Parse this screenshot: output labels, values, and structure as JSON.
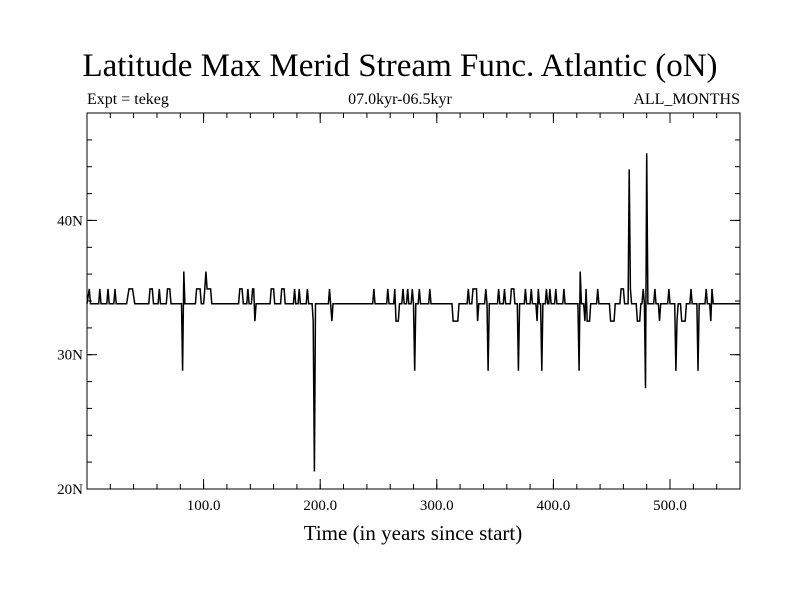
{
  "chart_data": {
    "type": "line",
    "title": "Latitude Max Merid Stream Func. Atlantic (oN)",
    "subtitle_left": "Expt = tekeg",
    "subtitle_center": "07.0kyr-06.5kyr",
    "subtitle_right": "ALL_MONTHS",
    "xlabel": "Time (in years since start)",
    "ylabel": "",
    "xlim": [
      0,
      560
    ],
    "ylim": [
      20,
      48
    ],
    "x_ticks": [
      100,
      200,
      300,
      400,
      500
    ],
    "x_tick_labels": [
      "100.0",
      "200.0",
      "300.0",
      "400.0",
      "500.0"
    ],
    "y_ticks": [
      20,
      30,
      40
    ],
    "y_tick_labels": [
      "20N",
      "30N",
      "40N"
    ],
    "baseline": 33.8,
    "series": [
      {
        "points": [
          [
            0,
            33.8
          ],
          [
            2,
            34.9
          ],
          [
            3,
            33.8
          ],
          [
            10,
            33.8
          ],
          [
            11,
            34.9
          ],
          [
            12,
            33.8
          ],
          [
            17,
            33.8
          ],
          [
            18,
            34.9
          ],
          [
            19,
            33.8
          ],
          [
            23,
            33.8
          ],
          [
            24,
            34.9
          ],
          [
            25,
            33.8
          ],
          [
            34,
            33.8
          ],
          [
            36,
            34.9
          ],
          [
            39,
            34.9
          ],
          [
            41,
            33.8
          ],
          [
            53,
            33.8
          ],
          [
            54,
            34.9
          ],
          [
            56,
            34.9
          ],
          [
            57,
            33.8
          ],
          [
            61,
            33.8
          ],
          [
            62,
            34.9
          ],
          [
            63,
            33.8
          ],
          [
            68,
            33.8
          ],
          [
            69,
            34.9
          ],
          [
            71,
            34.9
          ],
          [
            72,
            33.8
          ],
          [
            81,
            33.8
          ],
          [
            82,
            28.8
          ],
          [
            83,
            36.2
          ],
          [
            84,
            33.8
          ],
          [
            93,
            33.8
          ],
          [
            94,
            34.9
          ],
          [
            97,
            34.9
          ],
          [
            98,
            33.8
          ],
          [
            100,
            33.8
          ],
          [
            101,
            34.9
          ],
          [
            102,
            36.2
          ],
          [
            103,
            34.9
          ],
          [
            106,
            34.9
          ],
          [
            107,
            33.8
          ],
          [
            130,
            33.8
          ],
          [
            131,
            34.9
          ],
          [
            133,
            34.9
          ],
          [
            134,
            33.8
          ],
          [
            137,
            33.8
          ],
          [
            138,
            34.9
          ],
          [
            139,
            33.8
          ],
          [
            141,
            33.8
          ],
          [
            142,
            34.9
          ],
          [
            143,
            34.9
          ],
          [
            144,
            32.5
          ],
          [
            145,
            33.8
          ],
          [
            157,
            33.8
          ],
          [
            158,
            34.9
          ],
          [
            160,
            34.9
          ],
          [
            161,
            33.8
          ],
          [
            166,
            33.8
          ],
          [
            167,
            34.9
          ],
          [
            169,
            34.9
          ],
          [
            170,
            33.8
          ],
          [
            177,
            33.8
          ],
          [
            178,
            34.9
          ],
          [
            179,
            33.8
          ],
          [
            181,
            33.8
          ],
          [
            182,
            34.9
          ],
          [
            183,
            33.8
          ],
          [
            188,
            33.8
          ],
          [
            189,
            34.9
          ],
          [
            190,
            33.8
          ],
          [
            193,
            33.8
          ],
          [
            194,
            32.5
          ],
          [
            195,
            21.3
          ],
          [
            196,
            33.8
          ],
          [
            207,
            33.8
          ],
          [
            208,
            34.9
          ],
          [
            210,
            32.5
          ],
          [
            211,
            33.8
          ],
          [
            245,
            33.8
          ],
          [
            246,
            34.9
          ],
          [
            247,
            33.8
          ],
          [
            257,
            33.8
          ],
          [
            258,
            34.9
          ],
          [
            259,
            33.8
          ],
          [
            263,
            33.8
          ],
          [
            264,
            34.9
          ],
          [
            265,
            32.5
          ],
          [
            267,
            32.5
          ],
          [
            268,
            33.8
          ],
          [
            270,
            33.8
          ],
          [
            271,
            34.9
          ],
          [
            272,
            33.8
          ],
          [
            274,
            33.8
          ],
          [
            275,
            34.9
          ],
          [
            276,
            33.8
          ],
          [
            278,
            33.8
          ],
          [
            279,
            34.9
          ],
          [
            280,
            33.8
          ],
          [
            281,
            28.8
          ],
          [
            282,
            33.8
          ],
          [
            284,
            33.8
          ],
          [
            285,
            34.9
          ],
          [
            286,
            33.8
          ],
          [
            293,
            33.8
          ],
          [
            294,
            34.9
          ],
          [
            295,
            33.8
          ],
          [
            313,
            33.8
          ],
          [
            314,
            32.5
          ],
          [
            318,
            32.5
          ],
          [
            319,
            33.8
          ],
          [
            326,
            33.8
          ],
          [
            327,
            34.9
          ],
          [
            328,
            33.8
          ],
          [
            330,
            33.8
          ],
          [
            331,
            34.9
          ],
          [
            334,
            34.9
          ],
          [
            335,
            32.5
          ],
          [
            336,
            33.8
          ],
          [
            341,
            33.8
          ],
          [
            342,
            34.9
          ],
          [
            343,
            33.8
          ],
          [
            344,
            28.8
          ],
          [
            345,
            33.8
          ],
          [
            352,
            33.8
          ],
          [
            353,
            34.9
          ],
          [
            354,
            33.8
          ],
          [
            357,
            33.8
          ],
          [
            358,
            34.9
          ],
          [
            359,
            33.8
          ],
          [
            363,
            33.8
          ],
          [
            364,
            34.9
          ],
          [
            366,
            34.9
          ],
          [
            367,
            33.8
          ],
          [
            369,
            33.8
          ],
          [
            370,
            28.8
          ],
          [
            371,
            33.8
          ],
          [
            375,
            33.8
          ],
          [
            376,
            34.9
          ],
          [
            377,
            33.8
          ],
          [
            380,
            33.8
          ],
          [
            381,
            34.9
          ],
          [
            382,
            33.8
          ],
          [
            385,
            33.8
          ],
          [
            386,
            32.5
          ],
          [
            387,
            34.9
          ],
          [
            388,
            33.8
          ],
          [
            389,
            33.8
          ],
          [
            390,
            28.8
          ],
          [
            391,
            33.8
          ],
          [
            393,
            33.8
          ],
          [
            394,
            34.9
          ],
          [
            395,
            33.8
          ],
          [
            396,
            33.8
          ],
          [
            397,
            34.9
          ],
          [
            398,
            33.8
          ],
          [
            401,
            33.8
          ],
          [
            402,
            34.9
          ],
          [
            403,
            33.8
          ],
          [
            408,
            33.8
          ],
          [
            409,
            34.9
          ],
          [
            410,
            33.8
          ],
          [
            421,
            33.8
          ],
          [
            422,
            28.8
          ],
          [
            423,
            36.2
          ],
          [
            424,
            33.8
          ],
          [
            426,
            33.8
          ],
          [
            427,
            32.5
          ],
          [
            428,
            34.9
          ],
          [
            429,
            32.5
          ],
          [
            431,
            32.5
          ],
          [
            432,
            33.8
          ],
          [
            437,
            33.8
          ],
          [
            438,
            34.9
          ],
          [
            439,
            33.8
          ],
          [
            448,
            33.8
          ],
          [
            449,
            32.5
          ],
          [
            452,
            32.5
          ],
          [
            453,
            33.8
          ],
          [
            457,
            33.8
          ],
          [
            458,
            34.9
          ],
          [
            460,
            34.9
          ],
          [
            461,
            33.8
          ],
          [
            464,
            33.8
          ],
          [
            465,
            43.8
          ],
          [
            466,
            34.9
          ],
          [
            467,
            33.8
          ],
          [
            471,
            33.8
          ],
          [
            472,
            32.5
          ],
          [
            474,
            32.5
          ],
          [
            475,
            33.8
          ],
          [
            476,
            33.8
          ],
          [
            477,
            34.9
          ],
          [
            478,
            33.8
          ],
          [
            479,
            27.5
          ],
          [
            480,
            45.0
          ],
          [
            481,
            33.8
          ],
          [
            486,
            33.8
          ],
          [
            487,
            34.9
          ],
          [
            488,
            33.8
          ],
          [
            490,
            33.8
          ],
          [
            491,
            32.5
          ],
          [
            492,
            33.8
          ],
          [
            498,
            33.8
          ],
          [
            499,
            34.9
          ],
          [
            500,
            33.8
          ],
          [
            504,
            33.8
          ],
          [
            505,
            28.8
          ],
          [
            506,
            32.5
          ],
          [
            507,
            33.8
          ],
          [
            509,
            33.8
          ],
          [
            510,
            32.5
          ],
          [
            513,
            32.5
          ],
          [
            514,
            33.8
          ],
          [
            517,
            33.8
          ],
          [
            518,
            34.9
          ],
          [
            519,
            33.8
          ],
          [
            523,
            33.8
          ],
          [
            524,
            28.8
          ],
          [
            525,
            33.8
          ],
          [
            530,
            33.8
          ],
          [
            531,
            34.9
          ],
          [
            532,
            33.8
          ],
          [
            534,
            33.8
          ],
          [
            535,
            32.5
          ],
          [
            536,
            34.9
          ],
          [
            537,
            33.8
          ],
          [
            560,
            33.8
          ]
        ]
      }
    ]
  }
}
